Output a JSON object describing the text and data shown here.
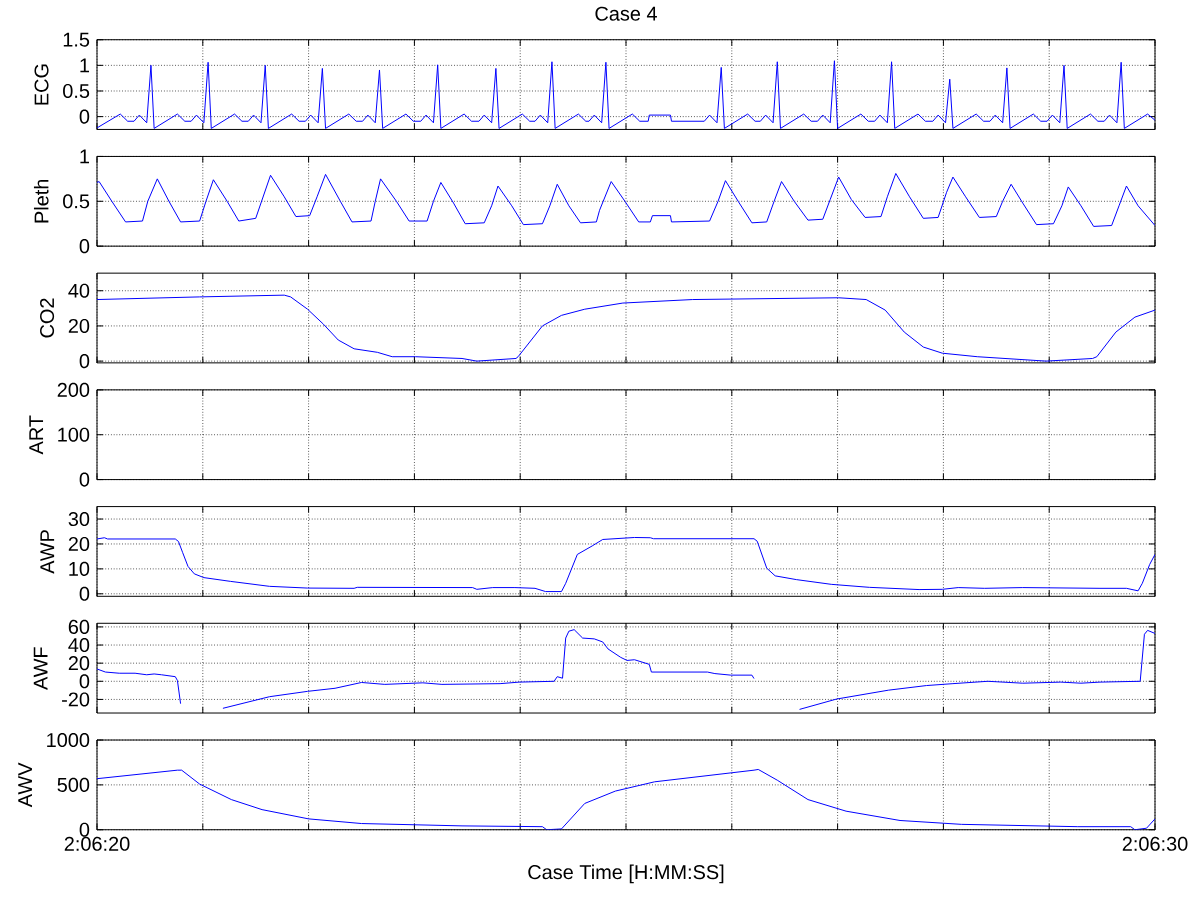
{
  "chart_data": [
    {
      "type": "line",
      "title": "Case 4",
      "ylabel": "ECG",
      "color": "#0000ff",
      "grid": true,
      "tick_labels": "y",
      "xlim": [
        7580,
        7590
      ],
      "xticks": [
        {
          "value": 7580,
          "label": null
        },
        {
          "value": 7581,
          "label": null
        },
        {
          "value": 7582,
          "label": null
        },
        {
          "value": 7583,
          "label": null
        },
        {
          "value": 7584,
          "label": null
        },
        {
          "value": 7585,
          "label": null
        },
        {
          "value": 7586,
          "label": null
        },
        {
          "value": 7587,
          "label": null
        },
        {
          "value": 7588,
          "label": null
        },
        {
          "value": 7589,
          "label": null
        },
        {
          "value": 7590,
          "label": null
        }
      ],
      "ylim": [
        -0.25,
        1.5
      ],
      "yticks": [
        0,
        0.5,
        1,
        1.5
      ],
      "x": [
        7580.0,
        7580.22,
        7580.29,
        7580.35,
        7580.4,
        7580.47,
        7580.51,
        7580.54,
        7580.76,
        7580.83,
        7580.89,
        7580.94,
        7581.01,
        7581.05,
        7581.08,
        7581.3,
        7581.37,
        7581.43,
        7581.48,
        7581.55,
        7581.59,
        7581.62,
        7581.84,
        7581.91,
        7581.97,
        7582.02,
        7582.09,
        7582.13,
        7582.16,
        7582.38,
        7582.45,
        7582.51,
        7582.56,
        7582.63,
        7582.67,
        7582.7,
        7582.92,
        7582.99,
        7583.06,
        7583.11,
        7583.18,
        7583.22,
        7583.25,
        7583.47,
        7583.54,
        7583.61,
        7583.66,
        7583.73,
        7583.77,
        7583.8,
        7584.02,
        7584.09,
        7584.14,
        7584.19,
        7584.26,
        7584.3,
        7584.33,
        7584.55,
        7584.62,
        7584.65,
        7584.7,
        7584.77,
        7584.81,
        7584.84,
        7585.06,
        7585.13,
        7585.21,
        7585.22,
        7585.42,
        7585.43,
        7585.74,
        7585.79,
        7585.86,
        7585.9,
        7585.93,
        7586.15,
        7586.22,
        7586.27,
        7586.32,
        7586.39,
        7586.43,
        7586.46,
        7586.68,
        7586.75,
        7586.81,
        7586.86,
        7586.93,
        7586.97,
        7587.0,
        7587.22,
        7587.29,
        7587.35,
        7587.4,
        7587.47,
        7587.51,
        7587.54,
        7587.76,
        7587.83,
        7587.9,
        7587.95,
        7588.02,
        7588.06,
        7588.09,
        7588.31,
        7588.38,
        7588.44,
        7588.49,
        7588.56,
        7588.6,
        7588.63,
        7588.85,
        7588.92,
        7588.98,
        7589.03,
        7589.1,
        7589.14,
        7589.17,
        7589.39,
        7589.46,
        7589.52,
        7589.57,
        7589.64,
        7589.68,
        7589.71,
        7589.93,
        7590.0
      ],
      "values": [
        -0.22,
        0.05,
        -0.09,
        -0.09,
        0.03,
        -0.12,
        1.0,
        -0.23,
        0.05,
        -0.09,
        -0.09,
        0.03,
        -0.12,
        1.06,
        -0.23,
        0.05,
        -0.09,
        -0.09,
        0.03,
        -0.12,
        1.0,
        -0.23,
        0.05,
        -0.09,
        -0.09,
        0.03,
        -0.12,
        0.94,
        -0.23,
        0.05,
        -0.09,
        -0.09,
        0.03,
        -0.12,
        0.91,
        -0.23,
        0.05,
        -0.09,
        -0.09,
        0.03,
        -0.12,
        1.01,
        -0.23,
        0.05,
        -0.09,
        -0.09,
        0.03,
        -0.12,
        0.94,
        -0.23,
        0.05,
        -0.09,
        -0.09,
        0.03,
        -0.12,
        1.07,
        -0.23,
        0.05,
        -0.09,
        -0.09,
        0.03,
        -0.12,
        1.06,
        -0.23,
        0.05,
        -0.09,
        -0.09,
        0.03,
        0.03,
        -0.09,
        -0.09,
        0.03,
        -0.12,
        0.96,
        -0.23,
        0.05,
        -0.09,
        -0.09,
        0.03,
        -0.12,
        1.07,
        -0.23,
        0.05,
        -0.09,
        -0.09,
        0.03,
        -0.12,
        1.09,
        -0.23,
        0.05,
        -0.09,
        -0.09,
        0.03,
        -0.12,
        1.07,
        -0.23,
        0.05,
        -0.09,
        -0.09,
        0.03,
        -0.12,
        0.73,
        -0.23,
        0.05,
        -0.09,
        -0.09,
        0.03,
        -0.12,
        0.95,
        -0.23,
        0.05,
        -0.09,
        -0.09,
        0.03,
        -0.12,
        1.0,
        -0.23,
        0.05,
        -0.09,
        -0.09,
        0.03,
        -0.12,
        1.06,
        -0.23,
        0.05,
        -0.07
      ]
    },
    {
      "type": "line",
      "ylabel": "Pleth",
      "color": "#0000ff",
      "grid": true,
      "tick_labels": "y",
      "xlim": [
        7580,
        7590
      ],
      "xticks": [
        {
          "value": 7580,
          "label": null
        },
        {
          "value": 7581,
          "label": null
        },
        {
          "value": 7582,
          "label": null
        },
        {
          "value": 7583,
          "label": null
        },
        {
          "value": 7584,
          "label": null
        },
        {
          "value": 7585,
          "label": null
        },
        {
          "value": 7586,
          "label": null
        },
        {
          "value": 7587,
          "label": null
        },
        {
          "value": 7588,
          "label": null
        },
        {
          "value": 7589,
          "label": null
        },
        {
          "value": 7590,
          "label": null
        }
      ],
      "ylim": [
        0,
        1
      ],
      "yticks": [
        0,
        0.5,
        1
      ],
      "x": [
        7580.0,
        7580.02,
        7580.14,
        7580.27,
        7580.43,
        7580.48,
        7580.57,
        7580.68,
        7580.79,
        7580.97,
        7581.03,
        7581.1,
        7581.23,
        7581.34,
        7581.5,
        7581.57,
        7581.64,
        7581.77,
        7581.88,
        7582.01,
        7582.08,
        7582.16,
        7582.3,
        7582.41,
        7582.59,
        7582.63,
        7582.68,
        7582.83,
        7582.95,
        7583.12,
        7583.18,
        7583.25,
        7583.37,
        7583.48,
        7583.66,
        7583.73,
        7583.79,
        7583.92,
        7584.03,
        7584.21,
        7584.28,
        7584.35,
        7584.46,
        7584.57,
        7584.72,
        7584.75,
        7584.86,
        7584.99,
        7585.12,
        7585.23,
        7585.25,
        7585.42,
        7585.43,
        7585.79,
        7585.87,
        7585.94,
        7586.06,
        7586.19,
        7586.33,
        7586.4,
        7586.47,
        7586.59,
        7586.72,
        7586.86,
        7586.93,
        7587.01,
        7587.13,
        7587.26,
        7587.41,
        7587.47,
        7587.55,
        7587.68,
        7587.81,
        7587.95,
        7588.03,
        7588.09,
        7588.21,
        7588.34,
        7588.5,
        7588.56,
        7588.64,
        7588.75,
        7588.88,
        7589.04,
        7589.12,
        7589.18,
        7589.3,
        7589.42,
        7589.59,
        7589.66,
        7589.73,
        7589.84,
        7590.0
      ],
      "values": [
        0.71,
        0.72,
        0.5,
        0.27,
        0.28,
        0.5,
        0.75,
        0.5,
        0.27,
        0.28,
        0.5,
        0.74,
        0.5,
        0.28,
        0.31,
        0.55,
        0.79,
        0.55,
        0.33,
        0.34,
        0.55,
        0.8,
        0.5,
        0.27,
        0.28,
        0.5,
        0.75,
        0.5,
        0.28,
        0.28,
        0.5,
        0.71,
        0.48,
        0.25,
        0.26,
        0.45,
        0.67,
        0.45,
        0.24,
        0.25,
        0.45,
        0.69,
        0.45,
        0.26,
        0.27,
        0.4,
        0.72,
        0.5,
        0.27,
        0.27,
        0.34,
        0.34,
        0.27,
        0.28,
        0.5,
        0.73,
        0.5,
        0.26,
        0.27,
        0.5,
        0.72,
        0.5,
        0.29,
        0.3,
        0.52,
        0.77,
        0.52,
        0.32,
        0.33,
        0.55,
        0.81,
        0.55,
        0.31,
        0.32,
        0.6,
        0.77,
        0.55,
        0.32,
        0.33,
        0.5,
        0.69,
        0.48,
        0.24,
        0.25,
        0.45,
        0.66,
        0.45,
        0.22,
        0.23,
        0.45,
        0.67,
        0.45,
        0.23
      ]
    },
    {
      "type": "line",
      "ylabel": "CO2",
      "color": "#0000ff",
      "grid": true,
      "tick_labels": "y",
      "xlim": [
        7580,
        7590
      ],
      "xticks": [
        {
          "value": 7580,
          "label": null
        },
        {
          "value": 7581,
          "label": null
        },
        {
          "value": 7582,
          "label": null
        },
        {
          "value": 7583,
          "label": null
        },
        {
          "value": 7584,
          "label": null
        },
        {
          "value": 7585,
          "label": null
        },
        {
          "value": 7586,
          "label": null
        },
        {
          "value": 7587,
          "label": null
        },
        {
          "value": 7588,
          "label": null
        },
        {
          "value": 7589,
          "label": null
        },
        {
          "value": 7590,
          "label": null
        }
      ],
      "ylim": [
        -1,
        50
      ],
      "yticks": [
        0,
        20,
        40
      ],
      "x": [
        7580.0,
        7580.97,
        7581.77,
        7581.83,
        7581.99,
        7582.14,
        7582.28,
        7582.43,
        7582.65,
        7582.79,
        7583.01,
        7583.45,
        7583.59,
        7583.96,
        7583.98,
        7584.21,
        7584.39,
        7584.61,
        7584.97,
        7585.63,
        7587.01,
        7587.27,
        7587.45,
        7587.63,
        7587.81,
        7587.99,
        7588.32,
        7588.97,
        7589.41,
        7589.45,
        7589.63,
        7589.81,
        7590.0
      ],
      "values": [
        35,
        36.5,
        37.5,
        36.5,
        29.5,
        21,
        12,
        7,
        5,
        2.5,
        2.5,
        1.5,
        0,
        1.5,
        2.5,
        20,
        26,
        29.5,
        33,
        35,
        36,
        35,
        29,
        16.5,
        8,
        4.5,
        2.5,
        0,
        1.5,
        2.5,
        16.5,
        25,
        29
      ]
    },
    {
      "type": "line",
      "ylabel": "ART",
      "color": "#0000ff",
      "grid": true,
      "tick_labels": "y",
      "xlim": [
        7580,
        7590
      ],
      "xticks": [
        {
          "value": 7580,
          "label": null
        },
        {
          "value": 7581,
          "label": null
        },
        {
          "value": 7582,
          "label": null
        },
        {
          "value": 7583,
          "label": null
        },
        {
          "value": 7584,
          "label": null
        },
        {
          "value": 7585,
          "label": null
        },
        {
          "value": 7586,
          "label": null
        },
        {
          "value": 7587,
          "label": null
        },
        {
          "value": 7588,
          "label": null
        },
        {
          "value": 7589,
          "label": null
        },
        {
          "value": 7590,
          "label": null
        }
      ],
      "ylim": [
        0,
        200
      ],
      "yticks": [
        0,
        100,
        200
      ]
    },
    {
      "type": "line",
      "ylabel": "AWP",
      "color": "#0000ff",
      "grid": true,
      "tick_labels": "y",
      "xlim": [
        7580,
        7590
      ],
      "xticks": [
        {
          "value": 7580,
          "label": null
        },
        {
          "value": 7581,
          "label": null
        },
        {
          "value": 7582,
          "label": null
        },
        {
          "value": 7583,
          "label": null
        },
        {
          "value": 7584,
          "label": null
        },
        {
          "value": 7585,
          "label": null
        },
        {
          "value": 7586,
          "label": null
        },
        {
          "value": 7587,
          "label": null
        },
        {
          "value": 7588,
          "label": null
        },
        {
          "value": 7589,
          "label": null
        },
        {
          "value": 7590,
          "label": null
        }
      ],
      "ylim": [
        -1,
        35
      ],
      "yticks": [
        0,
        10,
        20,
        30
      ],
      "x": [
        7580.0,
        7580.07,
        7580.1,
        7580.74,
        7580.77,
        7580.81,
        7580.86,
        7580.92,
        7581.01,
        7581.26,
        7581.63,
        7581.99,
        7582.43,
        7582.46,
        7583.55,
        7583.59,
        7583.74,
        7583.95,
        7584.14,
        7584.24,
        7584.39,
        7584.43,
        7584.54,
        7584.68,
        7584.78,
        7585.08,
        7585.23,
        7585.26,
        7586.21,
        7586.24,
        7586.33,
        7586.41,
        7586.61,
        7586.94,
        7587.3,
        7587.77,
        7587.99,
        7588.14,
        7588.39,
        7588.75,
        7589.48,
        7589.73,
        7589.84,
        7589.88,
        7589.95,
        7590.0
      ],
      "values": [
        22,
        22.5,
        22,
        22,
        21,
        16.5,
        11,
        8,
        6.5,
        5,
        3,
        2.3,
        2.2,
        2.6,
        2.5,
        1.8,
        2.5,
        2.5,
        2.2,
        0.9,
        0.9,
        4.2,
        15.8,
        19.2,
        21.8,
        22.6,
        22.5,
        22.1,
        22.1,
        21.1,
        10.3,
        7.2,
        5.7,
        3.8,
        2.6,
        1.7,
        1.8,
        2.5,
        2.2,
        2.5,
        2.2,
        2.2,
        1.2,
        4.2,
        11.8,
        15.8
      ]
    },
    {
      "type": "line",
      "ylabel": "AWF",
      "color": "#0000ff",
      "grid": true,
      "tick_labels": "y",
      "xlim": [
        7580,
        7590
      ],
      "xticks": [
        {
          "value": 7580,
          "label": null
        },
        {
          "value": 7581,
          "label": null
        },
        {
          "value": 7582,
          "label": null
        },
        {
          "value": 7583,
          "label": null
        },
        {
          "value": 7584,
          "label": null
        },
        {
          "value": 7585,
          "label": null
        },
        {
          "value": 7586,
          "label": null
        },
        {
          "value": 7587,
          "label": null
        },
        {
          "value": 7588,
          "label": null
        },
        {
          "value": 7589,
          "label": null
        },
        {
          "value": 7590,
          "label": null
        }
      ],
      "ylim": [
        -35,
        64
      ],
      "yticks": [
        -20,
        0,
        20,
        40,
        60
      ],
      "x": [
        7580.0,
        7580.08,
        7580.21,
        7580.36,
        7580.47,
        7580.54,
        7580.61,
        7580.74,
        7580.76,
        7580.79,
        7580.81,
        7580.94,
        7581.07,
        7581.19,
        7581.63,
        7581.99,
        7582.25,
        7582.5,
        7582.72,
        7583.08,
        7583.26,
        7583.81,
        7583.99,
        7584.32,
        7584.35,
        7584.4,
        7584.43,
        7584.46,
        7584.51,
        7584.59,
        7584.7,
        7584.78,
        7584.83,
        7584.95,
        7585.01,
        7585.08,
        7585.22,
        7585.24,
        7585.77,
        7585.84,
        7585.99,
        7586.19,
        7586.21,
        7586.27,
        7586.4,
        7586.53,
        7586.64,
        7586.99,
        7587.48,
        7587.84,
        7588.09,
        7588.42,
        7588.75,
        7589.11,
        7589.3,
        7589.48,
        7589.86,
        7589.9,
        7589.93,
        7590.0
      ],
      "values": [
        13.6,
        10.2,
        8.9,
        8.9,
        7.2,
        8.1,
        7.2,
        5.1,
        0.9,
        -24.7,
        null,
        null,
        null,
        -29.8,
        -17,
        -11.1,
        -7.7,
        -1.3,
        -3.4,
        -1.7,
        -3.4,
        -2.6,
        -0.9,
        0,
        5.1,
        3.4,
        47.7,
        55.3,
        57,
        47.7,
        46.8,
        43.4,
        35.7,
        26.4,
        23,
        23.8,
        18.7,
        10.2,
        10.2,
        8.5,
        6.8,
        6.8,
        3,
        null,
        null,
        null,
        -31,
        -19.6,
        -9.8,
        -4.7,
        -2.6,
        0,
        -2.1,
        -0.9,
        -2.1,
        -0.9,
        0,
        51.9,
        56.2,
        52.8
      ]
    },
    {
      "type": "line",
      "ylabel": "AWV",
      "xlabel": "Case Time [H:MM:SS]",
      "color": "#0000ff",
      "grid": true,
      "xlim": [
        7580,
        7590
      ],
      "xticks": [
        {
          "value": 7580,
          "label": "2:06:20"
        },
        {
          "value": 7581,
          "label": null
        },
        {
          "value": 7582,
          "label": null
        },
        {
          "value": 7583,
          "label": null
        },
        {
          "value": 7584,
          "label": null
        },
        {
          "value": 7585,
          "label": null
        },
        {
          "value": 7586,
          "label": null
        },
        {
          "value": 7587,
          "label": null
        },
        {
          "value": 7588,
          "label": null
        },
        {
          "value": 7589,
          "label": null
        },
        {
          "value": 7590,
          "label": "2:06:30"
        }
      ],
      "ylim": [
        0,
        1000
      ],
      "yticks": [
        0,
        500,
        1000
      ],
      "x": [
        7580.0,
        7580.76,
        7580.8,
        7580.97,
        7581.27,
        7581.56,
        7582.0,
        7582.5,
        7583.45,
        7584.21,
        7584.25,
        7584.39,
        7584.61,
        7584.9,
        7585.27,
        7586.21,
        7586.25,
        7586.43,
        7586.72,
        7587.08,
        7587.59,
        7588.17,
        7589.27,
        7589.77,
        7589.81,
        7589.92,
        7590.0
      ],
      "values": [
        569,
        664,
        664,
        509,
        336,
        224,
        121,
        69,
        43,
        34,
        0,
        9,
        293,
        431,
        534,
        664,
        672,
        552,
        336,
        207,
        103,
        60,
        34,
        34,
        0,
        17,
        121
      ]
    }
  ]
}
